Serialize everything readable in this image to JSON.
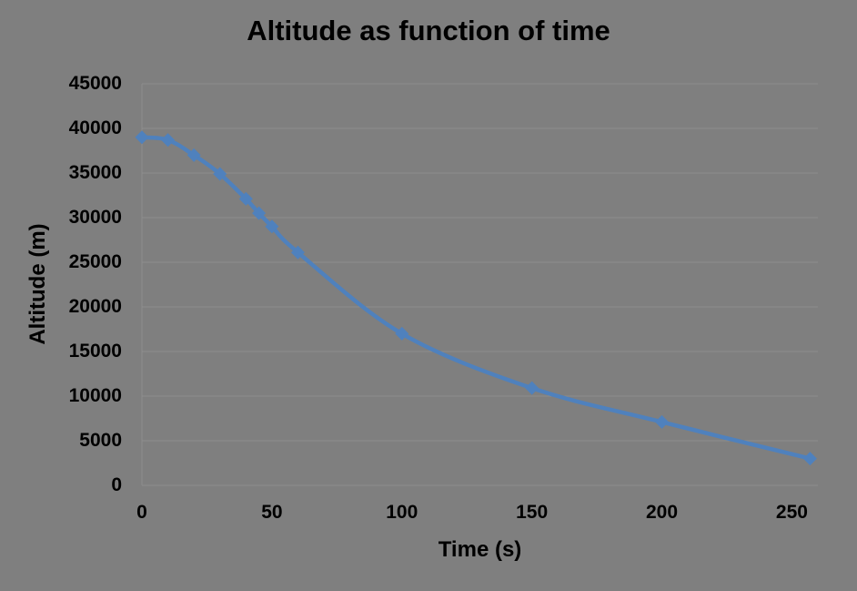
{
  "chart_data": {
    "type": "line",
    "title": "Altitude as function of time",
    "xlabel": "Time (s)",
    "ylabel": "Altitude (m)",
    "x": [
      0,
      10,
      20,
      30,
      40,
      45,
      50,
      60,
      100,
      150,
      200,
      257
    ],
    "y": [
      39000,
      38700,
      37000,
      34900,
      32100,
      30500,
      29000,
      26100,
      17000,
      10900,
      7100,
      3000
    ],
    "xlim": [
      0,
      260
    ],
    "ylim": [
      0,
      45000
    ],
    "x_ticks": [
      0,
      50,
      100,
      150,
      200,
      250
    ],
    "y_ticks": [
      0,
      5000,
      10000,
      15000,
      20000,
      25000,
      30000,
      35000,
      40000,
      45000
    ],
    "grid": "horizontal-only",
    "legend": "none",
    "marker": "diamond",
    "line_smoothing": true,
    "colors": {
      "line": "#4F81BD",
      "background": "#7F7F7F",
      "gridline": "#8E8E8E",
      "text": "#000000"
    }
  }
}
